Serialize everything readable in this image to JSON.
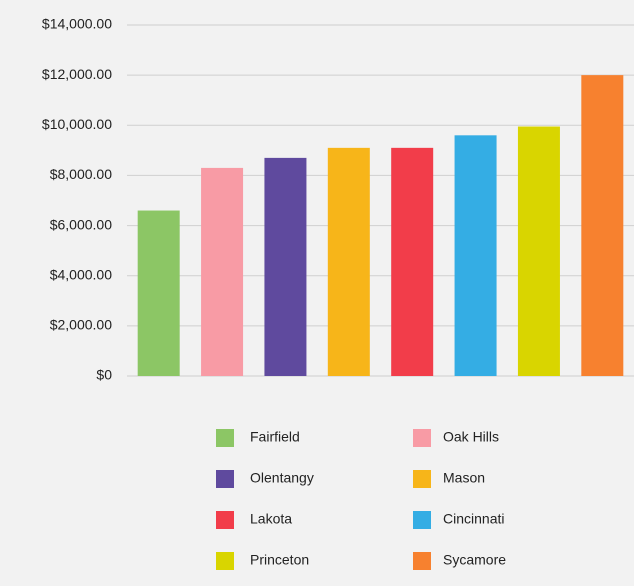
{
  "chart_data": {
    "type": "bar",
    "series": [
      {
        "name": "Fairfield",
        "color": "#8cc665",
        "values": [
          6600
        ]
      },
      {
        "name": "Oak Hills",
        "color": "#f89ba5",
        "values": [
          8300
        ]
      },
      {
        "name": "Olentangy",
        "color": "#5f4a9e",
        "values": [
          8700
        ]
      },
      {
        "name": "Mason",
        "color": "#f7b519",
        "values": [
          9100
        ]
      },
      {
        "name": "Lakota",
        "color": "#f23d4a",
        "values": [
          9100
        ]
      },
      {
        "name": "Cincinnati",
        "color": "#34ade4",
        "values": [
          9600
        ]
      },
      {
        "name": "Princeton",
        "color": "#d9d500",
        "values": [
          9950
        ]
      },
      {
        "name": "Sycamore",
        "color": "#f7812f",
        "values": [
          12000
        ]
      }
    ],
    "ylim": [
      0,
      14000
    ],
    "yticks": [
      {
        "value": 0,
        "label": "$0"
      },
      {
        "value": 2000,
        "label": "$2,000.00"
      },
      {
        "value": 4000,
        "label": "$4,000.00"
      },
      {
        "value": 6000,
        "label": "$6,000.00"
      },
      {
        "value": 8000,
        "label": "$8,000.00"
      },
      {
        "value": 10000,
        "label": "$10,000.00"
      },
      {
        "value": 12000,
        "label": "$12,000.00"
      },
      {
        "value": 14000,
        "label": "$14,000.00"
      }
    ],
    "grid": true
  }
}
